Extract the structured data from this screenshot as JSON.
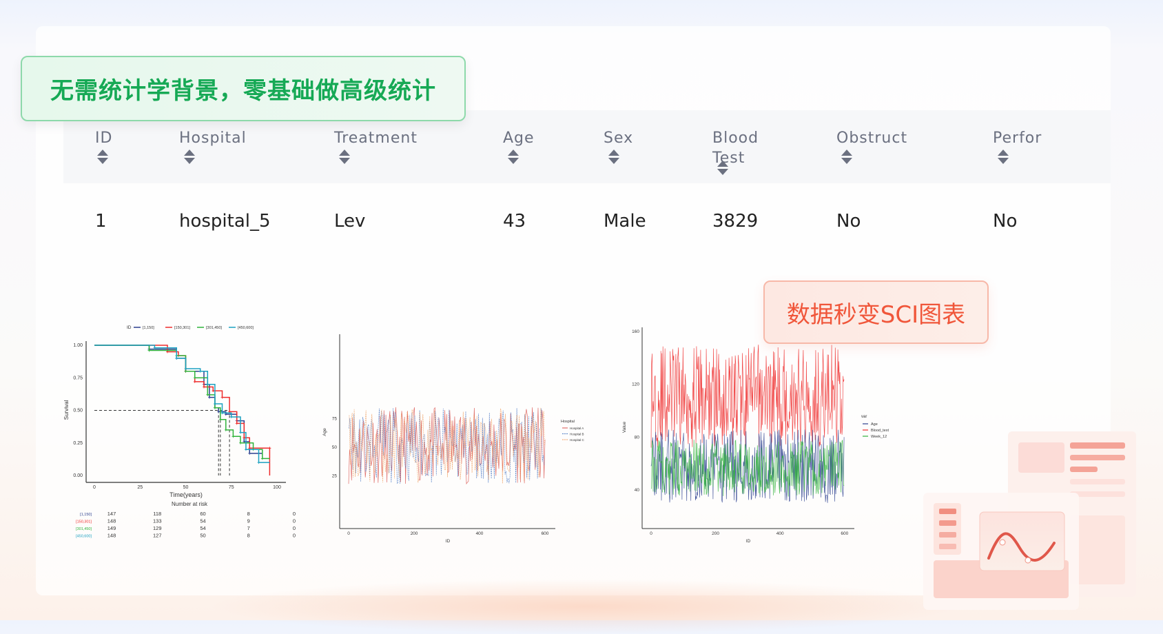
{
  "banner_top": "无需统计学背景，零基础做高级统计",
  "banner_charts": "数据秒变SCI图表",
  "table": {
    "columns": [
      "ID",
      "Hospital",
      "Treatment",
      "Age",
      "Sex",
      "Blood\nTest",
      "Obstruct",
      "Perfor"
    ],
    "rows": [
      [
        "1",
        "hospital_5",
        "Lev",
        "43",
        "Male",
        "3829",
        "No",
        "No"
      ]
    ]
  },
  "chart_data": [
    {
      "type": "line",
      "subtype": "kaplan-meier",
      "legend_title": "ID",
      "legend_position": "top",
      "xlabel": "Time(years)",
      "ylabel": "Survival",
      "xlim": [
        0,
        100
      ],
      "ylim": [
        0,
        1
      ],
      "xticks": [
        "0",
        "25",
        "50",
        "75",
        "100"
      ],
      "yticks": [
        "0.00",
        "0.25",
        "0.50",
        "0.75",
        "1.00"
      ],
      "median_lines": {
        "y": 0.5,
        "x": [
          68,
          69,
          74
        ]
      },
      "series": [
        {
          "name": "[1,150]",
          "color": "#2b3f8f",
          "points": [
            [
              0,
              1
            ],
            [
              20,
              1
            ],
            [
              30,
              0.97
            ],
            [
              45,
              0.9
            ],
            [
              50,
              0.8
            ],
            [
              60,
              0.7
            ],
            [
              63,
              0.6
            ],
            [
              66,
              0.52
            ],
            [
              68,
              0.49
            ],
            [
              72,
              0.47
            ],
            [
              78,
              0.42
            ],
            [
              82,
              0.26
            ],
            [
              85,
              0.17
            ],
            [
              92,
              0.17
            ]
          ]
        },
        {
          "name": "[150,301]",
          "color": "#ee2b2b",
          "points": [
            [
              0,
              1
            ],
            [
              25,
              1
            ],
            [
              40,
              0.95
            ],
            [
              46,
              0.92
            ],
            [
              50,
              0.8
            ],
            [
              55,
              0.72
            ],
            [
              60,
              0.68
            ],
            [
              65,
              0.65
            ],
            [
              70,
              0.6
            ],
            [
              74,
              0.49
            ],
            [
              78,
              0.4
            ],
            [
              82,
              0.29
            ],
            [
              85,
              0.21
            ],
            [
              96,
              0.21
            ],
            [
              96,
              0
            ]
          ]
        },
        {
          "name": "[301,450]",
          "color": "#2fb33a",
          "points": [
            [
              0,
              1
            ],
            [
              20,
              1
            ],
            [
              30,
              0.96
            ],
            [
              45,
              0.92
            ],
            [
              50,
              0.8
            ],
            [
              55,
              0.75
            ],
            [
              62,
              0.62
            ],
            [
              66,
              0.52
            ],
            [
              69,
              0.43
            ],
            [
              72,
              0.35
            ],
            [
              76,
              0.3
            ],
            [
              80,
              0.25
            ],
            [
              87,
              0.2
            ],
            [
              92,
              0.13
            ],
            [
              96,
              0.13
            ]
          ]
        },
        {
          "name": "[450,600]",
          "color": "#1aa0c0",
          "points": [
            [
              0,
              1
            ],
            [
              25,
              1
            ],
            [
              33,
              0.98
            ],
            [
              45,
              0.9
            ],
            [
              50,
              0.82
            ],
            [
              58,
              0.8
            ],
            [
              62,
              0.7
            ],
            [
              66,
              0.55
            ],
            [
              70,
              0.48
            ],
            [
              75,
              0.45
            ],
            [
              80,
              0.33
            ],
            [
              83,
              0.2
            ],
            [
              90,
              0.1
            ],
            [
              96,
              0.1
            ]
          ]
        }
      ],
      "risk_table": {
        "title": "Number at risk",
        "times": [
          0,
          25,
          50,
          75,
          100
        ],
        "rows": [
          [
            "[1,150]",
            147,
            118,
            60,
            8,
            0
          ],
          [
            "[150,301]",
            148,
            133,
            54,
            9,
            0
          ],
          [
            "[301,450]",
            149,
            129,
            54,
            7,
            0
          ],
          [
            "[450,600]",
            148,
            127,
            50,
            8,
            0
          ]
        ]
      }
    },
    {
      "type": "line",
      "xlabel": "ID",
      "ylabel": "Age",
      "xlim": [
        0,
        600
      ],
      "ylim": [
        15,
        90
      ],
      "xticks": [
        "0",
        "200",
        "400",
        "600"
      ],
      "yticks": [
        "25",
        "50",
        "75"
      ],
      "legend_title": "Hospital",
      "legend_position": "right",
      "series": [
        {
          "name": "Hospital A",
          "color": "#d9534f",
          "dash": false,
          "range": [
            18,
            85
          ]
        },
        {
          "name": "Hospital B",
          "color": "#4a78c4",
          "dash": true,
          "range": [
            18,
            85
          ]
        },
        {
          "name": "Hospital C",
          "color": "#f0a060",
          "dash": true,
          "range": [
            18,
            85
          ]
        }
      ]
    },
    {
      "type": "line",
      "xlabel": "ID",
      "ylabel": "Value",
      "xlim": [
        0,
        600
      ],
      "ylim": [
        25,
        165
      ],
      "xticks": [
        "0",
        "200",
        "400",
        "600"
      ],
      "yticks": [
        "40",
        "80",
        "120",
        "160"
      ],
      "legend_title": "var",
      "legend_position": "right",
      "series": [
        {
          "name": "Age",
          "color": "#2b3f8f",
          "range": [
            30,
            86
          ]
        },
        {
          "name": "Blood_text",
          "color": "#ee2b2b",
          "range": [
            72,
            150
          ]
        },
        {
          "name": "Week_12",
          "color": "#2fb33a",
          "range": [
            35,
            78
          ]
        }
      ]
    }
  ],
  "colors": {
    "green_accent": "#16a955",
    "red_accent": "#f0563a",
    "header_text": "#6b7080"
  }
}
